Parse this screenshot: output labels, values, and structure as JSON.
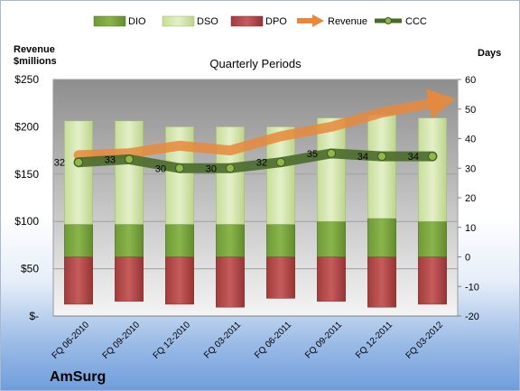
{
  "chart_data": {
    "type": "bar",
    "title": "Quarterly Periods",
    "company": "AmSurg",
    "left_axis_label": "Revenue $millions",
    "left_axis_label_lines": [
      "Revenue",
      "$millions"
    ],
    "right_axis_label": "Days",
    "categories": [
      "FQ 06-2010",
      "FQ 09-2010",
      "FQ 12-2010",
      "FQ 03-2011",
      "FQ 06-2011",
      "FQ 09-2011",
      "FQ 12-2011",
      "FQ 03-2012"
    ],
    "left_ylim": [
      0,
      250
    ],
    "left_ticks": [
      0,
      50,
      100,
      150,
      200,
      250
    ],
    "left_tick_labels": [
      "$-",
      "$50",
      "$100",
      "$150",
      "$200",
      "$250"
    ],
    "right_ylim": [
      -20,
      60
    ],
    "right_ticks": [
      -20,
      -10,
      0,
      10,
      20,
      30,
      40,
      50,
      60
    ],
    "right_tick_labels": [
      "-20",
      "-10",
      "0",
      "10",
      "20",
      "30",
      "40",
      "50",
      "60"
    ],
    "grid": true,
    "legend_position": "top",
    "legend": [
      "DIO",
      "DSO",
      "DPO",
      "Revenue",
      "CCC"
    ],
    "series": [
      {
        "name": "DIO",
        "axis": "right",
        "kind": "bar",
        "values": [
          11,
          11,
          11,
          11,
          11,
          12,
          13,
          12
        ],
        "color": "#77a23e"
      },
      {
        "name": "DSO",
        "axis": "right",
        "kind": "bar",
        "values": [
          35,
          35,
          33,
          33,
          33,
          35,
          35,
          35
        ],
        "color": "#cfe3a6"
      },
      {
        "name": "DPO",
        "axis": "right",
        "kind": "bar",
        "values": [
          -16,
          -15,
          -16,
          -17,
          -14,
          -15,
          -17,
          -16
        ],
        "color": "#b54a4a"
      },
      {
        "name": "Revenue",
        "axis": "left",
        "kind": "line",
        "values": [
          170,
          172,
          180,
          175,
          190,
          200,
          215,
          225
        ],
        "color": "#e8883a"
      },
      {
        "name": "CCC",
        "axis": "right",
        "kind": "line",
        "values": [
          32,
          33,
          30,
          30,
          32,
          35,
          34,
          34
        ],
        "labels": [
          "32",
          "33",
          "30",
          "30",
          "32",
          "35",
          "34",
          "34"
        ],
        "color": "#4a6a2a"
      }
    ]
  }
}
